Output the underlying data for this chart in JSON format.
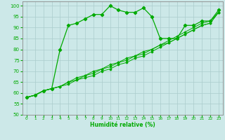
{
  "xlabel": "Humidité relative (%)",
  "background_color": "#cce8e8",
  "grid_color": "#aacccc",
  "line_color": "#00aa00",
  "xlim": [
    -0.5,
    23.5
  ],
  "ylim": [
    50,
    102
  ],
  "yticks": [
    50,
    55,
    60,
    65,
    70,
    75,
    80,
    85,
    90,
    95,
    100
  ],
  "xticks": [
    0,
    1,
    2,
    3,
    4,
    5,
    6,
    7,
    8,
    9,
    10,
    11,
    12,
    13,
    14,
    15,
    16,
    17,
    18,
    19,
    20,
    21,
    22,
    23
  ],
  "series1_x": [
    0,
    1,
    2,
    3,
    4,
    5,
    6,
    7,
    8,
    9,
    10,
    11,
    12,
    13,
    14,
    15,
    16,
    17,
    18,
    19,
    20,
    21,
    22,
    23
  ],
  "series1_y": [
    58,
    59,
    61,
    62,
    80,
    91,
    92,
    94,
    96,
    96,
    100,
    98,
    97,
    97,
    99,
    95,
    85,
    85,
    85,
    91,
    91,
    93,
    93,
    98
  ],
  "series2_x": [
    0,
    1,
    2,
    3,
    4,
    5,
    6,
    7,
    8,
    9,
    10,
    11,
    12,
    13,
    14,
    15,
    16,
    17,
    18,
    19,
    20,
    21,
    22,
    23
  ],
  "series2_y": [
    58,
    59,
    61,
    62,
    63,
    65,
    67,
    68,
    70,
    71,
    73,
    74,
    76,
    77,
    79,
    80,
    82,
    84,
    86,
    88,
    90,
    92,
    93,
    97
  ],
  "series3_x": [
    0,
    1,
    2,
    3,
    4,
    5,
    6,
    7,
    8,
    9,
    10,
    11,
    12,
    13,
    14,
    15,
    16,
    17,
    18,
    19,
    20,
    21,
    22,
    23
  ],
  "series3_y": [
    58,
    59,
    61,
    62,
    63,
    65,
    66,
    68,
    69,
    71,
    72,
    74,
    75,
    77,
    78,
    80,
    82,
    83,
    85,
    87,
    89,
    91,
    92,
    97
  ],
  "series4_x": [
    0,
    1,
    2,
    3,
    4,
    5,
    6,
    7,
    8,
    9,
    10,
    11,
    12,
    13,
    14,
    15,
    16,
    17,
    18,
    19,
    20,
    21,
    22,
    23
  ],
  "series4_y": [
    58,
    59,
    61,
    62,
    63,
    64,
    66,
    67,
    68,
    70,
    71,
    73,
    74,
    76,
    77,
    79,
    81,
    83,
    85,
    87,
    89,
    91,
    92,
    97
  ]
}
